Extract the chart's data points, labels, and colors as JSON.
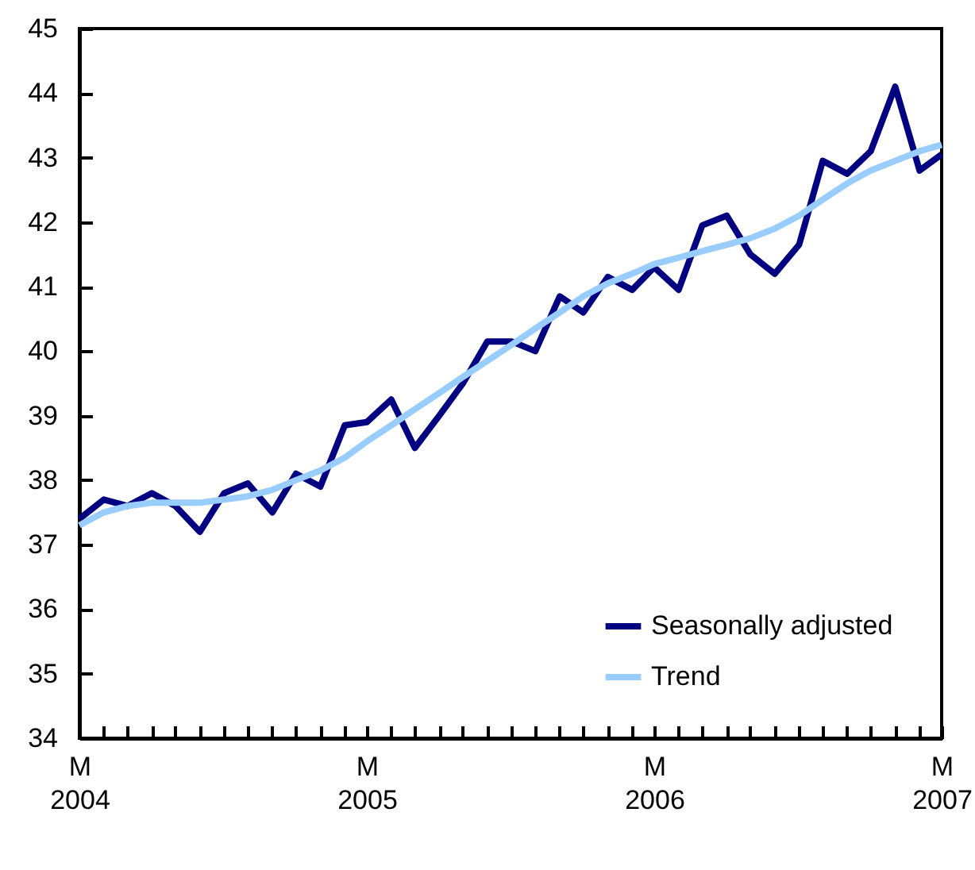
{
  "chart_data": {
    "type": "line",
    "x": [
      "2004-03",
      "2004-04",
      "2004-05",
      "2004-06",
      "2004-07",
      "2004-08",
      "2004-09",
      "2004-10",
      "2004-11",
      "2004-12",
      "2005-01",
      "2005-02",
      "2005-03",
      "2005-04",
      "2005-05",
      "2005-06",
      "2005-07",
      "2005-08",
      "2005-09",
      "2005-10",
      "2005-11",
      "2005-12",
      "2006-01",
      "2006-02",
      "2006-03",
      "2006-04",
      "2006-05",
      "2006-06",
      "2006-07",
      "2006-08",
      "2006-09",
      "2006-10",
      "2006-11",
      "2006-12",
      "2007-01",
      "2007-02",
      "2007-03"
    ],
    "series": [
      {
        "name": "Seasonally adjusted",
        "color": "#000080",
        "values": [
          37.4,
          37.7,
          37.6,
          37.8,
          37.6,
          37.2,
          37.8,
          37.95,
          37.5,
          38.1,
          37.9,
          38.85,
          38.9,
          39.25,
          38.5,
          39.0,
          39.5,
          40.15,
          40.15,
          40.0,
          40.85,
          40.6,
          41.15,
          40.95,
          41.3,
          40.95,
          41.95,
          42.1,
          41.5,
          41.2,
          41.65,
          42.95,
          42.75,
          43.1,
          44.1,
          42.8,
          43.05
        ]
      },
      {
        "name": "Trend",
        "color": "#99ccff",
        "values": [
          37.3,
          37.5,
          37.6,
          37.65,
          37.65,
          37.65,
          37.7,
          37.75,
          37.85,
          38.0,
          38.15,
          38.35,
          38.6,
          38.85,
          39.1,
          39.35,
          39.6,
          39.85,
          40.1,
          40.35,
          40.6,
          40.85,
          41.05,
          41.2,
          41.35,
          41.45,
          41.55,
          41.65,
          41.75,
          41.9,
          42.1,
          42.35,
          42.6,
          42.8,
          42.95,
          43.1,
          43.2
        ]
      }
    ],
    "xlim": [
      "2004-03",
      "2007-03"
    ],
    "xticks": [
      {
        "value": "2004-03",
        "label": "M\n\n2004"
      },
      {
        "value": "2004-04",
        "label": null
      },
      {
        "value": "2004-05",
        "label": null
      },
      {
        "value": "2004-06",
        "label": null
      },
      {
        "value": "2004-07",
        "label": null
      },
      {
        "value": "2004-08",
        "label": null
      },
      {
        "value": "2004-09",
        "label": null
      },
      {
        "value": "2004-10",
        "label": null
      },
      {
        "value": "2004-11",
        "label": null
      },
      {
        "value": "2004-12",
        "label": null
      },
      {
        "value": "2005-01",
        "label": null
      },
      {
        "value": "2005-02",
        "label": null
      },
      {
        "value": "2005-03",
        "label": "M\n\n2005"
      },
      {
        "value": "2005-04",
        "label": null
      },
      {
        "value": "2005-05",
        "label": null
      },
      {
        "value": "2005-06",
        "label": null
      },
      {
        "value": "2005-07",
        "label": null
      },
      {
        "value": "2005-08",
        "label": null
      },
      {
        "value": "2005-09",
        "label": null
      },
      {
        "value": "2005-10",
        "label": null
      },
      {
        "value": "2005-11",
        "label": null
      },
      {
        "value": "2005-12",
        "label": null
      },
      {
        "value": "2006-01",
        "label": null
      },
      {
        "value": "2006-02",
        "label": null
      },
      {
        "value": "2006-03",
        "label": "M\n\n2006"
      },
      {
        "value": "2006-04",
        "label": null
      },
      {
        "value": "2006-05",
        "label": null
      },
      {
        "value": "2006-06",
        "label": null
      },
      {
        "value": "2006-07",
        "label": null
      },
      {
        "value": "2006-08",
        "label": null
      },
      {
        "value": "2006-09",
        "label": null
      },
      {
        "value": "2006-10",
        "label": null
      },
      {
        "value": "2006-11",
        "label": null
      },
      {
        "value": "2006-12",
        "label": null
      },
      {
        "value": "2007-01",
        "label": null
      },
      {
        "value": "2007-02",
        "label": null
      },
      {
        "value": "2007-03",
        "label": "M\n\n2007"
      }
    ],
    "ylim": [
      34,
      45
    ],
    "yticks": [
      34,
      35,
      36,
      37,
      38,
      39,
      40,
      41,
      42,
      43,
      44,
      45
    ],
    "grid": false,
    "legend": "bottom right",
    "line_style": "solid"
  }
}
